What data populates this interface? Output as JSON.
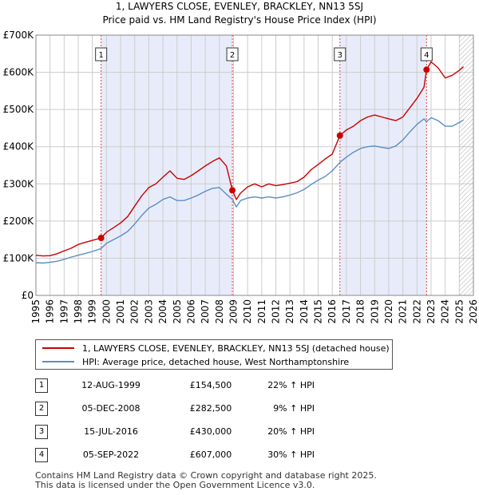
{
  "title_lines": [
    "1, LAWYERS CLOSE, EVENLEY, BRACKLEY, NN13 5SJ",
    "Price paid vs. HM Land Registry's House Price Index (HPI)"
  ],
  "chart_data": {
    "type": "line",
    "ylim": [
      0,
      700000
    ],
    "xlim": [
      1995,
      2026
    ],
    "y_ticks": [
      {
        "value": 0,
        "label": "£0"
      },
      {
        "value": 100000,
        "label": "£100K"
      },
      {
        "value": 200000,
        "label": "£200K"
      },
      {
        "value": 300000,
        "label": "£300K"
      },
      {
        "value": 400000,
        "label": "£400K"
      },
      {
        "value": 500000,
        "label": "£500K"
      },
      {
        "value": 600000,
        "label": "£600K"
      },
      {
        "value": 700000,
        "label": "£700K"
      }
    ],
    "x_ticks": [
      "1995",
      "1996",
      "1997",
      "1998",
      "1999",
      "2000",
      "2001",
      "2002",
      "2003",
      "2004",
      "2005",
      "2006",
      "2007",
      "2008",
      "2009",
      "2010",
      "2011",
      "2012",
      "2013",
      "2014",
      "2015",
      "2016",
      "2017",
      "2018",
      "2019",
      "2020",
      "2021",
      "2022",
      "2023",
      "2024",
      "2025",
      "2026"
    ],
    "shaded_ranges": [
      [
        1999.62,
        2008.92
      ],
      [
        2016.54,
        2022.68
      ]
    ],
    "hatched_from": 2025.0,
    "series": [
      {
        "name": "1, LAWYERS CLOSE, EVENLEY, BRACKLEY, NN13 5SJ (detached house)",
        "color": "#cc0000",
        "x": [
          1995.0,
          1995.5,
          1996.0,
          1996.5,
          1997.0,
          1997.5,
          1998.0,
          1998.5,
          1999.0,
          1999.62,
          2000.0,
          2000.5,
          2001.0,
          2001.5,
          2002.0,
          2002.5,
          2003.0,
          2003.5,
          2004.0,
          2004.5,
          2005.0,
          2005.5,
          2006.0,
          2006.5,
          2007.0,
          2007.5,
          2008.0,
          2008.5,
          2008.92,
          2009.2,
          2009.5,
          2010.0,
          2010.5,
          2011.0,
          2011.5,
          2012.0,
          2012.5,
          2013.0,
          2013.5,
          2014.0,
          2014.5,
          2015.0,
          2015.5,
          2016.0,
          2016.54,
          2017.0,
          2017.5,
          2018.0,
          2018.5,
          2019.0,
          2019.5,
          2020.0,
          2020.5,
          2021.0,
          2021.5,
          2022.0,
          2022.5,
          2022.68,
          2023.0,
          2023.5,
          2024.0,
          2024.5,
          2025.0,
          2025.3
        ],
        "values": [
          108000,
          106000,
          107000,
          112000,
          120000,
          127000,
          137000,
          143000,
          148000,
          154500,
          170000,
          182000,
          195000,
          212000,
          240000,
          268000,
          290000,
          300000,
          318000,
          335000,
          315000,
          312000,
          322000,
          335000,
          348000,
          360000,
          370000,
          348000,
          282500,
          258000,
          275000,
          292000,
          300000,
          292000,
          300000,
          295000,
          298000,
          302000,
          306000,
          318000,
          338000,
          352000,
          367000,
          380000,
          430000,
          445000,
          455000,
          470000,
          480000,
          485000,
          480000,
          475000,
          470000,
          480000,
          505000,
          530000,
          560000,
          607000,
          628000,
          612000,
          585000,
          592000,
          605000,
          615000
        ]
      },
      {
        "name": "HPI: Average price, detached house, West Northamptonshire",
        "color": "#5b8ec4",
        "x": [
          1995.0,
          1995.5,
          1996.0,
          1996.5,
          1997.0,
          1997.5,
          1998.0,
          1998.5,
          1999.0,
          1999.62,
          2000.0,
          2000.5,
          2001.0,
          2001.5,
          2002.0,
          2002.5,
          2003.0,
          2003.5,
          2004.0,
          2004.5,
          2005.0,
          2005.5,
          2006.0,
          2006.5,
          2007.0,
          2007.5,
          2008.0,
          2008.5,
          2008.92,
          2009.2,
          2009.5,
          2010.0,
          2010.5,
          2011.0,
          2011.5,
          2012.0,
          2012.5,
          2013.0,
          2013.5,
          2014.0,
          2014.5,
          2015.0,
          2015.5,
          2016.0,
          2016.54,
          2017.0,
          2017.5,
          2018.0,
          2018.5,
          2019.0,
          2019.5,
          2020.0,
          2020.5,
          2021.0,
          2021.5,
          2022.0,
          2022.5,
          2022.68,
          2023.0,
          2023.5,
          2024.0,
          2024.5,
          2025.0,
          2025.3
        ],
        "values": [
          88000,
          87000,
          89000,
          92000,
          97000,
          103000,
          108000,
          113000,
          118000,
          126000,
          140000,
          150000,
          160000,
          172000,
          192000,
          215000,
          235000,
          245000,
          258000,
          265000,
          255000,
          255000,
          262000,
          270000,
          280000,
          288000,
          290000,
          272000,
          258000,
          238000,
          255000,
          262000,
          265000,
          262000,
          265000,
          262000,
          265000,
          270000,
          276000,
          285000,
          298000,
          310000,
          320000,
          335000,
          358000,
          372000,
          385000,
          395000,
          400000,
          402000,
          398000,
          395000,
          402000,
          418000,
          440000,
          460000,
          475000,
          467000,
          478000,
          470000,
          455000,
          455000,
          465000,
          472000
        ]
      }
    ],
    "sale_markers": [
      {
        "id": "1",
        "x": 1999.62,
        "value": 154500
      },
      {
        "id": "2",
        "x": 2008.92,
        "value": 282500
      },
      {
        "id": "3",
        "x": 2016.54,
        "value": 430000
      },
      {
        "id": "4",
        "x": 2022.68,
        "value": 607000
      }
    ]
  },
  "legend": [
    {
      "label": "1, LAWYERS CLOSE, EVENLEY, BRACKLEY, NN13 5SJ (detached house)",
      "color": "#cc0000"
    },
    {
      "label": "HPI: Average price, detached house, West Northamptonshire",
      "color": "#5b8ec4"
    }
  ],
  "sales": [
    {
      "id": "1",
      "date": "12-AUG-1999",
      "price": "£154,500",
      "hpi": "22% ↑ HPI"
    },
    {
      "id": "2",
      "date": "05-DEC-2008",
      "price": "£282,500",
      "hpi": "9% ↑ HPI"
    },
    {
      "id": "3",
      "date": "15-JUL-2016",
      "price": "£430,000",
      "hpi": "20% ↑ HPI"
    },
    {
      "id": "4",
      "date": "05-SEP-2022",
      "price": "£607,000",
      "hpi": "30% ↑ HPI"
    }
  ],
  "footer": [
    "Contains HM Land Registry data © Crown copyright and database right 2025.",
    "This data is licensed under the Open Government Licence v3.0."
  ]
}
